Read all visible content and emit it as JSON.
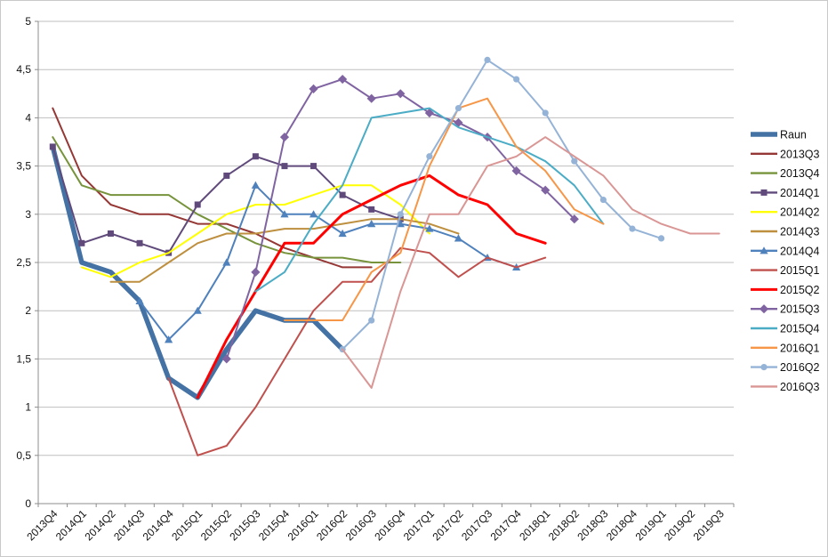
{
  "chart_data": {
    "type": "line",
    "title": "",
    "xlabel": "",
    "ylabel": "",
    "ylim": [
      0,
      5
    ],
    "y_tick_step": 0.5,
    "y_tick_labels": [
      "0",
      "0,5",
      "1",
      "1,5",
      "2",
      "2,5",
      "3",
      "3,5",
      "4",
      "4,5",
      "5"
    ],
    "grid": "horizontal",
    "legend_position": "right",
    "categories": [
      "2013Q4",
      "2014Q1",
      "2014Q2",
      "2014Q3",
      "2014Q4",
      "2015Q1",
      "2015Q2",
      "2015Q3",
      "2015Q4",
      "2016Q1",
      "2016Q2",
      "2016Q3",
      "2016Q4",
      "2017Q1",
      "2017Q2",
      "2017Q3",
      "2017Q4",
      "2018Q1",
      "2018Q2",
      "2018Q3",
      "2018Q4",
      "2019Q1",
      "2019Q2",
      "2019Q3"
    ],
    "series": [
      {
        "name": "Raun",
        "color": "#4472A4",
        "width": 5.5,
        "marker": "none",
        "start": 0,
        "values": [
          3.7,
          2.5,
          2.4,
          2.1,
          1.3,
          1.1,
          1.6,
          2.0,
          1.9,
          1.9,
          1.6
        ]
      },
      {
        "name": "2013Q3",
        "color": "#953734",
        "width": 2,
        "marker": "none",
        "start": 0,
        "values": [
          4.1,
          3.4,
          3.1,
          3.0,
          3.0,
          2.9,
          2.9,
          2.8,
          2.65,
          2.55,
          2.45,
          2.45
        ]
      },
      {
        "name": "2013Q4",
        "color": "#77933C",
        "width": 2,
        "marker": "none",
        "start": 0,
        "values": [
          3.8,
          3.3,
          3.2,
          3.2,
          3.2,
          3.0,
          2.85,
          2.7,
          2.6,
          2.55,
          2.55,
          2.5,
          2.5
        ]
      },
      {
        "name": "2014Q1",
        "color": "#604A7B",
        "width": 2,
        "marker": "square",
        "start": 0,
        "values": [
          3.7,
          2.7,
          2.8,
          2.7,
          2.6,
          3.1,
          3.4,
          3.6,
          3.5,
          3.5,
          3.2,
          3.05,
          2.95
        ]
      },
      {
        "name": "2014Q2",
        "color": "#FFFF00",
        "width": 2,
        "marker": "none",
        "start": 1,
        "values": [
          2.45,
          2.35,
          2.5,
          2.6,
          2.8,
          3.0,
          3.1,
          3.1,
          3.2,
          3.3,
          3.3,
          3.1,
          2.8
        ]
      },
      {
        "name": "2014Q3",
        "color": "#BD8F3E",
        "width": 2,
        "marker": "none",
        "start": 2,
        "values": [
          2.3,
          2.3,
          2.5,
          2.7,
          2.8,
          2.8,
          2.85,
          2.85,
          2.9,
          2.95,
          2.95,
          2.9,
          2.8
        ]
      },
      {
        "name": "2014Q4",
        "color": "#4F81BD",
        "width": 2,
        "marker": "triangle",
        "start": 3,
        "values": [
          2.1,
          1.7,
          2.0,
          2.5,
          3.3,
          3.0,
          3.0,
          2.8,
          2.9,
          2.9,
          2.85,
          2.75,
          2.55,
          2.45
        ]
      },
      {
        "name": "2015Q1",
        "color": "#C0504D",
        "width": 2,
        "marker": "none",
        "start": 4,
        "values": [
          1.3,
          0.5,
          0.6,
          1.0,
          1.5,
          2.0,
          2.3,
          2.3,
          2.65,
          2.6,
          2.35,
          2.55,
          2.45,
          2.55
        ]
      },
      {
        "name": "2015Q2",
        "color": "#FF0000",
        "width": 3,
        "marker": "none",
        "start": 5,
        "values": [
          1.1,
          1.7,
          2.2,
          2.7,
          2.7,
          3.0,
          3.15,
          3.3,
          3.4,
          3.2,
          3.1,
          2.8,
          2.7
        ]
      },
      {
        "name": "2015Q3",
        "color": "#8064A2",
        "width": 2,
        "marker": "diamond",
        "start": 6,
        "values": [
          1.5,
          2.4,
          3.8,
          4.3,
          4.4,
          4.2,
          4.25,
          4.05,
          3.95,
          3.8,
          3.45,
          3.25,
          2.95
        ]
      },
      {
        "name": "2015Q4",
        "color": "#4BACC6",
        "width": 2,
        "marker": "none",
        "start": 7,
        "values": [
          2.2,
          2.4,
          2.9,
          3.3,
          4.0,
          4.05,
          4.1,
          3.9,
          3.8,
          3.7,
          3.55,
          3.3,
          2.9
        ]
      },
      {
        "name": "2016Q1",
        "color": "#F79646",
        "width": 2,
        "marker": "none",
        "start": 8,
        "values": [
          1.9,
          1.9,
          1.9,
          2.4,
          2.6,
          3.5,
          4.1,
          4.2,
          3.7,
          3.45,
          3.05,
          2.9
        ]
      },
      {
        "name": "2016Q2",
        "color": "#95B3D7",
        "width": 2,
        "marker": "circle",
        "start": 10,
        "values": [
          1.6,
          1.9,
          3.0,
          3.6,
          4.1,
          4.6,
          4.4,
          4.05,
          3.55,
          3.15,
          2.85,
          2.75
        ]
      },
      {
        "name": "2016Q3",
        "color": "#D99694",
        "width": 2,
        "marker": "none",
        "start": 10,
        "values": [
          1.6,
          1.2,
          2.2,
          3.0,
          3.0,
          3.5,
          3.6,
          3.8,
          3.6,
          3.4,
          3.05,
          2.9,
          2.8,
          2.8
        ]
      }
    ]
  },
  "layout_colors": {
    "gridline": "#BFBFBF",
    "axis": "#8C8C8C",
    "background": "#FFFFFF"
  }
}
